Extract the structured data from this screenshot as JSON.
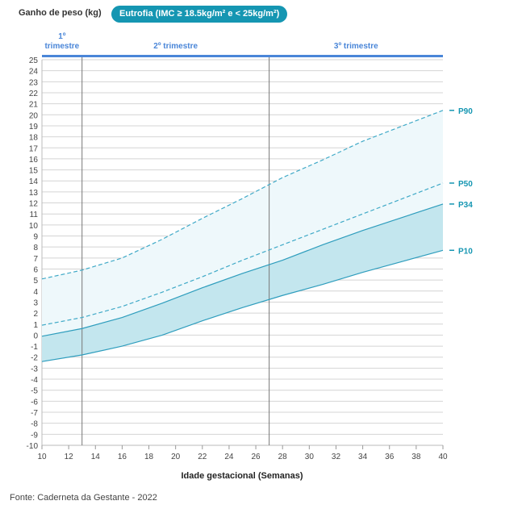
{
  "header": {
    "ylabel": "Ganho de peso (kg)",
    "badge": "Eutrofia (IMC ≥ 18.5kg/m² e < 25kg/m²)"
  },
  "footer": {
    "source": "Fonte: Caderneta da Gestante - 2022"
  },
  "chart_data": {
    "type": "line",
    "xlabel": "Idade gestacional (Semanas)",
    "ylabel": "Ganho de peso (kg)",
    "xlim": [
      10,
      40
    ],
    "ylim": [
      -10,
      25
    ],
    "xticks": [
      10,
      12,
      14,
      16,
      18,
      20,
      22,
      24,
      26,
      28,
      30,
      32,
      34,
      36,
      38,
      40
    ],
    "yticks": [
      -10,
      -9,
      -8,
      -7,
      -6,
      -5,
      -4,
      -3,
      -2,
      -1,
      0,
      1,
      2,
      3,
      4,
      5,
      6,
      7,
      8,
      9,
      10,
      11,
      12,
      13,
      14,
      15,
      16,
      17,
      18,
      19,
      20,
      21,
      22,
      23,
      24,
      25
    ],
    "grid": true,
    "trimesters": [
      {
        "label": "1º trimestre",
        "start": 10,
        "end": 13
      },
      {
        "label": "2º trimestre",
        "start": 13,
        "end": 27
      },
      {
        "label": "3º trimestre",
        "start": 27,
        "end": 40
      }
    ],
    "x": [
      10,
      13,
      16,
      19,
      22,
      25,
      28,
      31,
      34,
      37,
      40
    ],
    "series": [
      {
        "name": "P90",
        "style": "dashed",
        "color": "#3fa9c7",
        "values": [
          5.1,
          5.9,
          7.0,
          8.7,
          10.6,
          12.4,
          14.3,
          15.9,
          17.6,
          19.0,
          20.4
        ]
      },
      {
        "name": "P50",
        "style": "dashed",
        "color": "#3fa9c7",
        "values": [
          0.9,
          1.6,
          2.6,
          3.9,
          5.3,
          6.8,
          8.2,
          9.6,
          11.0,
          12.4,
          13.8
        ]
      },
      {
        "name": "P34",
        "style": "solid",
        "color": "#2e9dbd",
        "values": [
          -0.1,
          0.6,
          1.6,
          2.9,
          4.3,
          5.6,
          6.8,
          8.2,
          9.5,
          10.7,
          11.9
        ]
      },
      {
        "name": "P10",
        "style": "solid",
        "color": "#2e9dbd",
        "values": [
          -2.4,
          -1.8,
          -1.0,
          0.0,
          1.3,
          2.5,
          3.6,
          4.6,
          5.7,
          6.7,
          7.7
        ]
      }
    ],
    "colors": {
      "outer_band": "#eef8fb",
      "inner_band": "#c3e6ee",
      "trimester_bar": "#4a86d8",
      "trimester_text": "#4a86d8",
      "label_color": "#1596b2"
    }
  }
}
